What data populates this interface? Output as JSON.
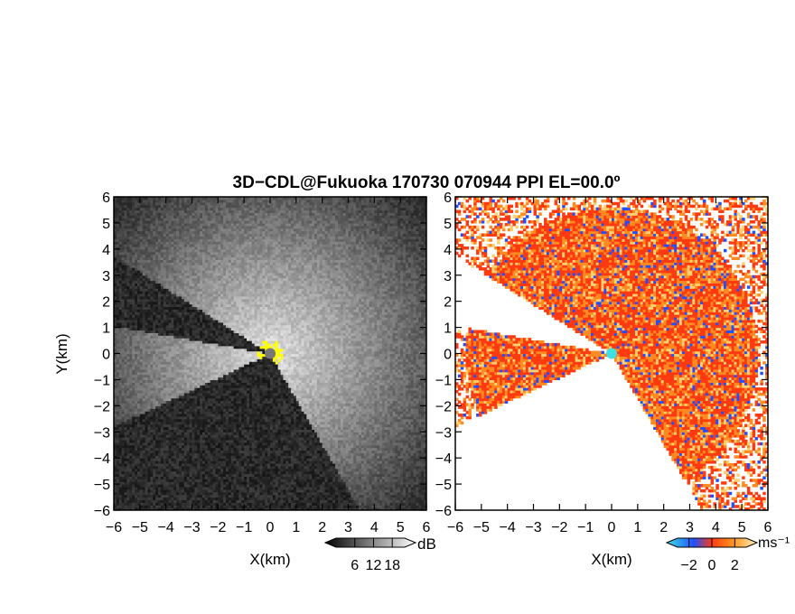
{
  "title": "3D−CDL@Fukuoka 170730 070944 PPI EL=00.0º",
  "chart_data": [
    {
      "type": "heatmap",
      "panel": "reflectivity",
      "title": "",
      "xlabel": "X(km)",
      "ylabel": "Y(km)",
      "xlim": [
        -6,
        6
      ],
      "ylim": [
        -6,
        6
      ],
      "x_ticks": [
        -6,
        -5,
        -4,
        -3,
        -2,
        -1,
        0,
        1,
        2,
        3,
        4,
        5,
        6
      ],
      "y_ticks": [
        -6,
        -5,
        -4,
        -3,
        -2,
        -1,
        0,
        1,
        2,
        3,
        4,
        5,
        6
      ],
      "x_tick_labels": [
        "−6",
        "−5",
        "−4",
        "−3",
        "−2",
        "−1",
        "0",
        "1",
        "2",
        "3",
        "4",
        "5",
        "6"
      ],
      "y_tick_labels": [
        "−6",
        "−5",
        "−4",
        "−3",
        "−2",
        "−1",
        "0",
        "1",
        "2",
        "3",
        "4",
        "5",
        "6"
      ],
      "colorbar": {
        "unit": "dB",
        "ticks": [
          6,
          12,
          18
        ],
        "tick_labels": [
          "6",
          "12",
          "18"
        ],
        "range": [
          0,
          22
        ],
        "colors": [
          "#000000",
          "#ffffff"
        ]
      },
      "flag_color": "#ffff00",
      "scan_region": {
        "shadow_sector_deg": [
          148,
          170
        ],
        "blocked_sector_deg": [
          205,
          300
        ]
      }
    },
    {
      "type": "heatmap",
      "panel": "radial-velocity",
      "title": "",
      "xlabel": "X(km)",
      "ylabel": "",
      "xlim": [
        -6,
        6
      ],
      "ylim": [
        -6,
        6
      ],
      "x_ticks": [
        -6,
        -5,
        -4,
        -3,
        -2,
        -1,
        0,
        1,
        2,
        3,
        4,
        5,
        6
      ],
      "y_ticks": [
        -6,
        -5,
        -4,
        -3,
        -2,
        -1,
        0,
        1,
        2,
        3,
        4,
        5,
        6
      ],
      "x_tick_labels": [
        "−6",
        "−5",
        "−4",
        "−3",
        "−2",
        "−1",
        "0",
        "1",
        "2",
        "3",
        "4",
        "5",
        "6"
      ],
      "y_tick_labels": [
        "−6",
        "−5",
        "−4",
        "−3",
        "−2",
        "−1",
        "0",
        "1",
        "2",
        "3",
        "4",
        "5",
        "6"
      ],
      "colorbar": {
        "unit": "ms⁻¹",
        "ticks": [
          -2,
          0,
          2
        ],
        "tick_labels": [
          "−2",
          "0",
          "2"
        ],
        "range": [
          -3,
          3
        ],
        "colors": [
          "#40e0e0",
          "#1e50ff",
          "#ff3a10",
          "#ff9a20",
          "#fff0c0"
        ]
      },
      "scan_region": {
        "shadow_sector_deg": [
          148,
          170
        ],
        "blocked_sector_deg": [
          205,
          300
        ]
      }
    }
  ]
}
